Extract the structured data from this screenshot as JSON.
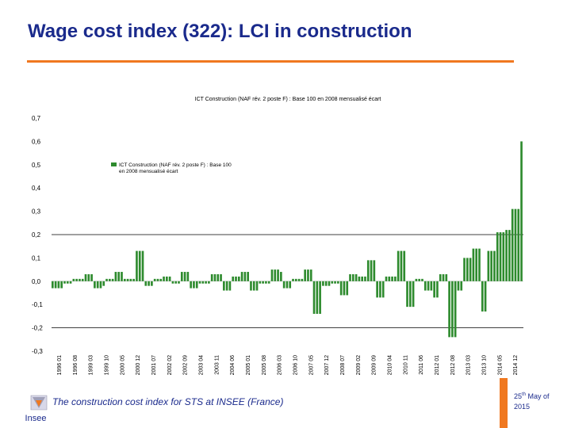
{
  "slide": {
    "title": "Wage cost index (322): LCI in construction",
    "footer_text": "The construction cost index for STS at INSEE (France)",
    "footer_date_day": "25",
    "footer_date_suffix": "th",
    "footer_date_rest": " May  of",
    "footer_date_year": "2015",
    "logo_text": "Insee"
  },
  "colors": {
    "title": "#1a2a8c",
    "accent": "#f07820",
    "bar": "#2e8b2e"
  },
  "chart_data": {
    "type": "bar",
    "title": "ICT Construction (NAF rév. 2 poste F) : Base 100 en 2008 mensualisé écart",
    "legend_label": "ICT Construction (NAF rév. 2 poste F) : Base 100 en 2008 mensualisé écart",
    "legend_position": "upper-left",
    "ylim": [
      -0.3,
      0.7
    ],
    "yticks": [
      "0,7",
      "0,6",
      "0,5",
      "0,4",
      "0,3",
      "0,2",
      "0,1",
      "0,0",
      "-0,1",
      "-0,2",
      "-0,3"
    ],
    "ytick_values": [
      0.7,
      0.6,
      0.5,
      0.4,
      0.3,
      0.2,
      0.1,
      0.0,
      -0.1,
      -0.2,
      -0.3
    ],
    "reference_lines": [
      0.2,
      -0.2
    ],
    "grid": false,
    "xtick_labels": [
      "1996 01",
      "1996 08",
      "1999 03",
      "1999 10",
      "2000 05",
      "2000 12",
      "2001 07",
      "2002 02",
      "2002 09",
      "2003 04",
      "2003 11",
      "2004 06",
      "2005 01",
      "2005 08",
      "2006 03",
      "2006 10",
      "2007 05",
      "2007 12",
      "2008 07",
      "2009 02",
      "2009 09",
      "2010 04",
      "2010 11",
      "2011 06",
      "2012 01",
      "2012 08",
      "2013 03",
      "2013 10",
      "2014 05",
      "2014 12"
    ],
    "values": [
      -0.03,
      -0.03,
      -0.03,
      -0.03,
      -0.01,
      -0.01,
      -0.01,
      0.01,
      0.01,
      0.01,
      0.01,
      0.03,
      0.03,
      0.03,
      -0.03,
      -0.03,
      -0.03,
      -0.02,
      0.01,
      0.01,
      0.01,
      0.04,
      0.04,
      0.04,
      0.01,
      0.01,
      0.01,
      0.01,
      0.13,
      0.13,
      0.13,
      -0.02,
      -0.02,
      -0.02,
      0.01,
      0.01,
      0.01,
      0.02,
      0.02,
      0.02,
      -0.01,
      -0.01,
      -0.01,
      0.04,
      0.04,
      0.04,
      -0.03,
      -0.03,
      -0.03,
      -0.01,
      -0.01,
      -0.01,
      -0.01,
      0.03,
      0.03,
      0.03,
      0.03,
      -0.04,
      -0.04,
      -0.04,
      0.02,
      0.02,
      0.02,
      0.04,
      0.04,
      0.04,
      -0.04,
      -0.04,
      -0.04,
      -0.01,
      -0.01,
      -0.01,
      -0.01,
      0.05,
      0.05,
      0.05,
      0.04,
      -0.03,
      -0.03,
      -0.03,
      0.01,
      0.01,
      0.01,
      0.01,
      0.05,
      0.05,
      0.05,
      -0.14,
      -0.14,
      -0.14,
      -0.02,
      -0.02,
      -0.02,
      -0.01,
      -0.01,
      -0.01,
      -0.06,
      -0.06,
      -0.06,
      0.03,
      0.03,
      0.03,
      0.02,
      0.02,
      0.02,
      0.09,
      0.09,
      0.09,
      -0.07,
      -0.07,
      -0.07,
      0.02,
      0.02,
      0.02,
      0.02,
      0.13,
      0.13,
      0.13,
      -0.11,
      -0.11,
      -0.11,
      0.01,
      0.01,
      0.01,
      -0.04,
      -0.04,
      -0.04,
      -0.07,
      -0.07,
      0.03,
      0.03,
      0.03,
      -0.24,
      -0.24,
      -0.24,
      -0.04,
      -0.04,
      0.1,
      0.1,
      0.1,
      0.14,
      0.14,
      0.14,
      -0.13,
      -0.13,
      0.13,
      0.13,
      0.13,
      0.21,
      0.21,
      0.21,
      0.22,
      0.22,
      0.31,
      0.31,
      0.31,
      0.6
    ]
  }
}
